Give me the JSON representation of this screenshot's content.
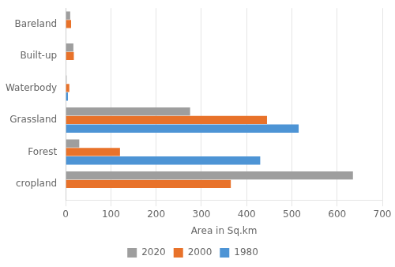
{
  "chart_data": {
    "type": "bar",
    "orientation": "horizontal",
    "categories": [
      "cropland",
      "Forest",
      "Grassland",
      "Waterbody",
      "Built-up",
      "Bareland"
    ],
    "series": [
      {
        "name": "2020",
        "color": "#9E9E9E",
        "values": [
          635,
          30,
          275,
          2,
          17,
          10
        ]
      },
      {
        "name": "2000",
        "color": "#E8722A",
        "values": [
          365,
          120,
          445,
          8,
          18,
          12
        ]
      },
      {
        "name": "1980",
        "color": "#4D94D5",
        "values": [
          0,
          430,
          515,
          5,
          0,
          0
        ]
      }
    ],
    "xlabel": "Area in Sq.km",
    "xlim": [
      0,
      700
    ],
    "xticks": [
      0,
      100,
      200,
      300,
      400,
      500,
      600,
      700
    ],
    "grid": true,
    "legend": "bottom"
  }
}
